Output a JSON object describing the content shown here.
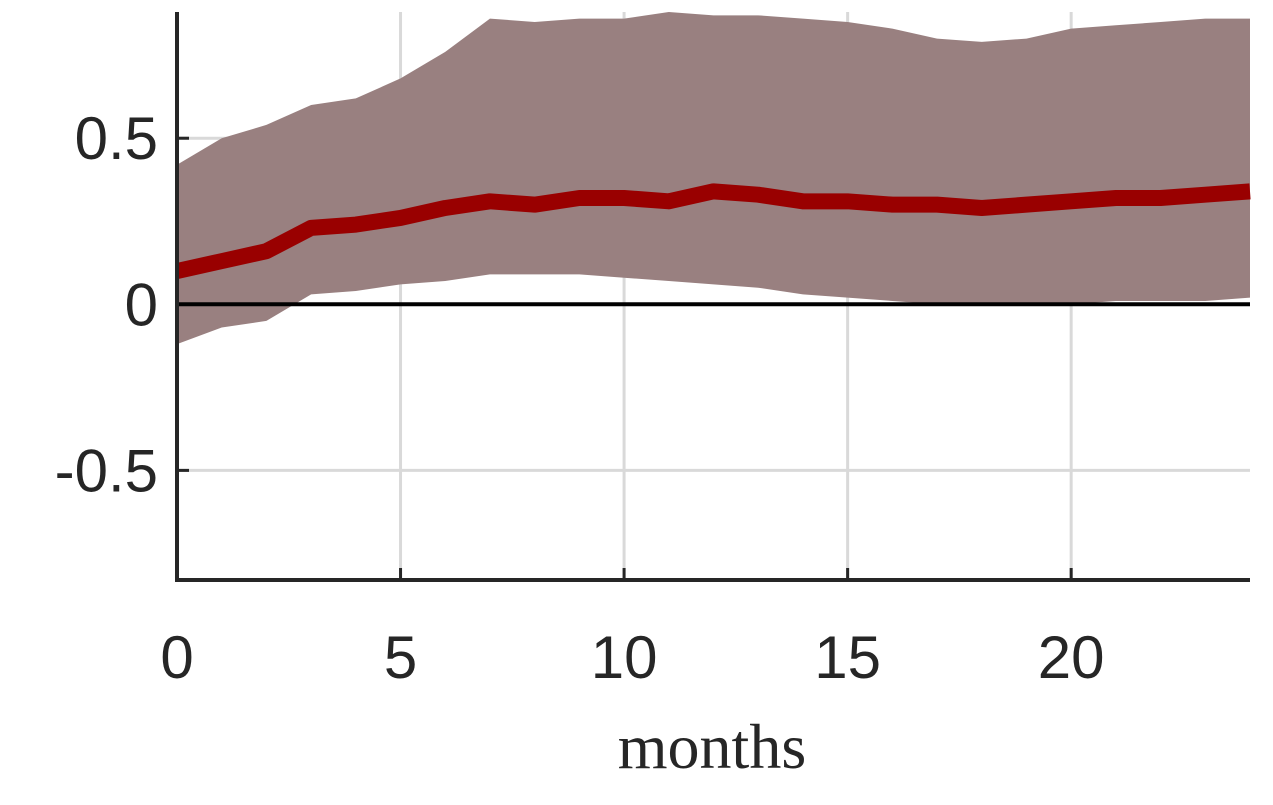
{
  "chart_data": {
    "type": "line",
    "xlabel": "months",
    "ylabel": "",
    "xlim": [
      0,
      24
    ],
    "ylim": [
      -0.83,
      0.88
    ],
    "x_ticks": [
      0,
      5,
      10,
      15,
      20
    ],
    "x_tick_labels": [
      "0",
      "5",
      "10",
      "15",
      "20"
    ],
    "y_ticks": [
      -0.5,
      0,
      0.5
    ],
    "y_tick_labels": [
      "-0.5",
      "0",
      "0.5"
    ],
    "grid": true,
    "zero_line": true,
    "x": [
      0,
      1,
      2,
      3,
      4,
      5,
      6,
      7,
      8,
      9,
      10,
      11,
      12,
      13,
      14,
      15,
      16,
      17,
      18,
      19,
      20,
      21,
      22,
      23,
      24
    ],
    "series": [
      {
        "values": [
          0.1,
          0.13,
          0.16,
          0.23,
          0.24,
          0.26,
          0.29,
          0.31,
          0.3,
          0.32,
          0.32,
          0.31,
          0.34,
          0.33,
          0.31,
          0.31,
          0.3,
          0.3,
          0.29,
          0.3,
          0.31,
          0.32,
          0.32,
          0.33,
          0.34
        ],
        "color": "#990000"
      }
    ],
    "band": {
      "upper": [
        0.42,
        0.5,
        0.54,
        0.6,
        0.62,
        0.68,
        0.76,
        0.86,
        0.85,
        0.86,
        0.86,
        0.88,
        0.87,
        0.87,
        0.86,
        0.85,
        0.83,
        0.8,
        0.79,
        0.8,
        0.83,
        0.84,
        0.85,
        0.86,
        0.86
      ],
      "lower": [
        -0.12,
        -0.07,
        -0.05,
        0.03,
        0.04,
        0.06,
        0.07,
        0.09,
        0.09,
        0.09,
        0.08,
        0.07,
        0.06,
        0.05,
        0.03,
        0.02,
        0.01,
        0.0,
        0.0,
        0.0,
        0.0,
        0.01,
        0.01,
        0.01,
        0.02
      ],
      "color": "#998080"
    }
  }
}
